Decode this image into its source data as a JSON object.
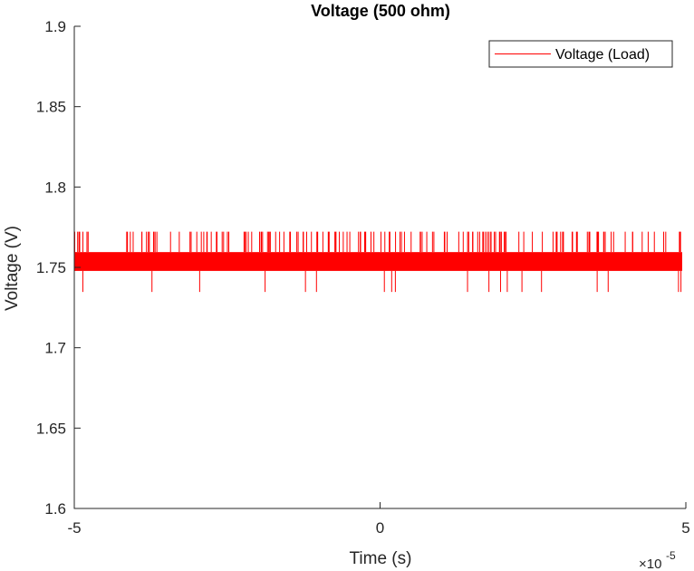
{
  "chart_data": {
    "type": "line",
    "title": "Voltage (500 ohm)",
    "xlabel": "Time (s)",
    "ylabel": "Voltage (V)",
    "xlim": [
      -5e-05,
      5e-05
    ],
    "ylim": [
      1.6,
      1.9
    ],
    "x_ticks": [
      -5e-05,
      0,
      5e-05
    ],
    "x_tick_labels": [
      "-5",
      "0",
      "5"
    ],
    "x_exponent": "×10",
    "x_exponent_power": "-5",
    "y_ticks": [
      1.6,
      1.65,
      1.7,
      1.75,
      1.8,
      1.85,
      1.9
    ],
    "y_tick_labels": [
      "1.6",
      "1.65",
      "1.7",
      "1.75",
      "1.8",
      "1.85",
      "1.9"
    ],
    "grid": false,
    "legend_position": "top-right",
    "series": [
      {
        "name": "Voltage (Load)",
        "color": "#ff0000",
        "quantization_levels": [
          1.7347,
          1.7478,
          1.7595,
          1.7722
        ],
        "base_level": 1.7478,
        "upper_level": 1.7595,
        "spike_high_level": 1.7722,
        "spike_low_level": 1.7347,
        "x_end": 4.94e-05,
        "low_spike_times": [
          -4.86e-05,
          -3.73e-05,
          -2.95e-05,
          -1.88e-05,
          -1.22e-05,
          -1.04e-05,
          7e-07,
          1.9e-06,
          2.5e-06,
          1.43e-05,
          1.78e-05,
          1.97e-05,
          2.08e-05,
          2.32e-05,
          3.73e-05,
          4.88e-05,
          4.92e-05,
          2.64e-05,
          3.55e-05
        ]
      }
    ]
  }
}
